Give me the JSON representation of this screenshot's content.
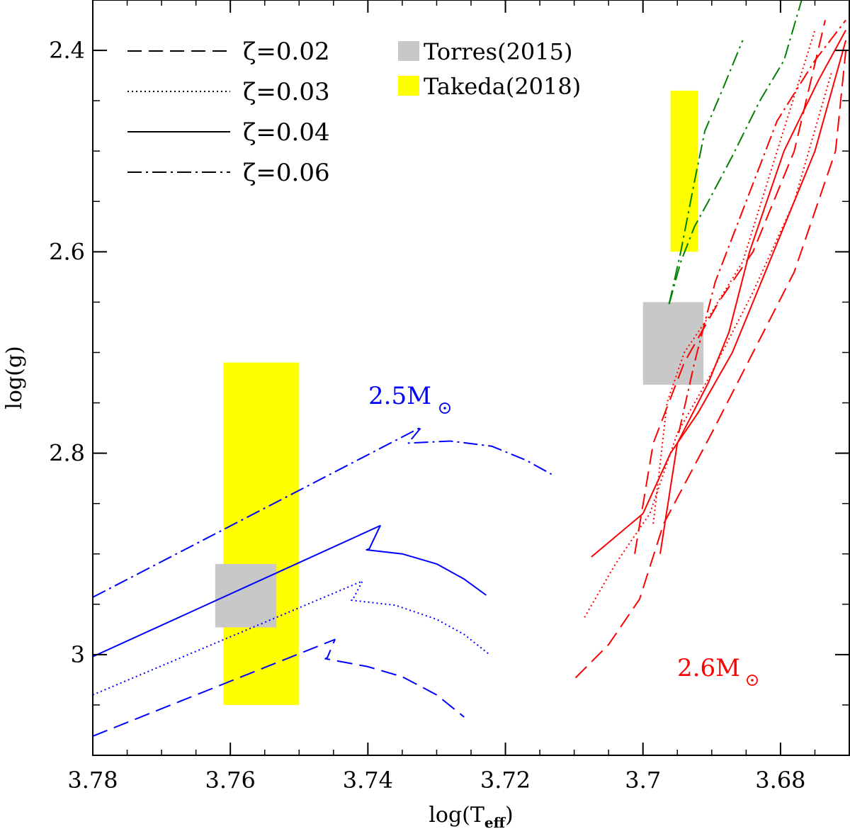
{
  "chart_data": {
    "type": "line",
    "title": "",
    "xlabel_main": "log(T",
    "xlabel_sub": "eff",
    "xlabel_close": ")",
    "ylabel": "log(g)",
    "xlim": [
      3.78,
      3.67
    ],
    "ylim": [
      3.1,
      2.35
    ],
    "x_ticks": [
      3.78,
      3.76,
      3.74,
      3.72,
      3.7,
      3.68
    ],
    "x_tick_labels": [
      "3.78",
      "3.76",
      "3.74",
      "3.72",
      "3.7",
      "3.68"
    ],
    "x_minor_step": 0.005,
    "y_ticks": [
      2.4,
      2.6,
      2.8,
      3.0
    ],
    "y_tick_labels": [
      "2.4",
      "2.6",
      "2.8",
      "3"
    ],
    "y_minor_step": 0.05,
    "legend_lines": [
      {
        "label": "ζ=0.02",
        "style": "dashed"
      },
      {
        "label": "ζ=0.03",
        "style": "dotted"
      },
      {
        "label": "ζ=0.04",
        "style": "solid"
      },
      {
        "label": "ζ=0.06",
        "style": "dashdot"
      }
    ],
    "legend_boxes": [
      {
        "label": "Torres(2015)",
        "color": "#c8c8c8"
      },
      {
        "label": "Takeda(2018)",
        "color": "#ffff00"
      }
    ],
    "mass_labels": [
      {
        "text": "2.5M",
        "color": "#0000ff",
        "x": 3.733,
        "y": 2.765
      },
      {
        "text": "2.6M",
        "color": "#ff0000",
        "x": 3.688,
        "y": 3.02
      }
    ],
    "boxes": [
      {
        "name": "takeda-box-left",
        "source": "Takeda(2018)",
        "color": "#ffff00",
        "x": [
          3.761,
          3.75
        ],
        "y": [
          2.71,
          3.05
        ]
      },
      {
        "name": "takeda-box-right",
        "source": "Takeda(2018)",
        "color": "#ffff00",
        "x": [
          3.696,
          3.692
        ],
        "y": [
          2.44,
          2.6
        ]
      },
      {
        "name": "torres-box-left",
        "source": "Torres(2015)",
        "color": "#c8c8c8",
        "x": [
          3.7622,
          3.7533
        ],
        "y": [
          2.91,
          2.973
        ]
      },
      {
        "name": "torres-box-right",
        "source": "Torres(2015)",
        "color": "#c8c8c8",
        "x": [
          3.7,
          3.6912
        ],
        "y": [
          2.65,
          2.732
        ]
      }
    ],
    "series": [
      {
        "name": "2.5M-zeta0.02",
        "color": "#0000ff",
        "style": "dashed",
        "x": [
          3.78,
          3.7448,
          3.7459,
          3.7462,
          3.74,
          3.735,
          3.73,
          3.726
        ],
        "y": [
          3.081,
          2.985,
          3.003,
          3.004,
          3.012,
          3.022,
          3.04,
          3.062
        ]
      },
      {
        "name": "2.5M-zeta0.03",
        "color": "#0000ff",
        "style": "dotted",
        "x": [
          3.78,
          3.7408,
          3.7421,
          3.7424,
          3.736,
          3.73,
          3.726,
          3.7225
        ],
        "y": [
          3.04,
          2.927,
          2.944,
          2.946,
          2.951,
          2.965,
          2.98,
          2.999
        ]
      },
      {
        "name": "2.5M-zeta0.04",
        "color": "#0000ff",
        "style": "solid",
        "x": [
          3.78,
          3.7382,
          3.7398,
          3.7402,
          3.735,
          3.73,
          3.726,
          3.7228
        ],
        "y": [
          3.002,
          2.872,
          2.895,
          2.896,
          2.9,
          2.91,
          2.925,
          2.941
        ]
      },
      {
        "name": "2.5M-zeta0.06",
        "color": "#0000ff",
        "style": "dashdot",
        "x": [
          3.78,
          3.7322,
          3.7339,
          3.7341,
          3.728,
          3.722,
          3.717,
          3.7133
        ],
        "y": [
          2.943,
          2.774,
          2.788,
          2.79,
          2.788,
          2.793,
          2.807,
          2.821
        ]
      },
      {
        "name": "2.6M-zeta0.02-rgb",
        "color": "#ff0000",
        "style": "dashed",
        "x": [
          3.7098,
          3.705,
          3.7005,
          3.697,
          3.69,
          3.684,
          3.678,
          3.672,
          3.6705
        ],
        "y": [
          3.023,
          2.99,
          2.945,
          2.87,
          2.78,
          2.7,
          2.62,
          2.5,
          2.4
        ]
      },
      {
        "name": "2.6M-zeta0.02-loop",
        "color": "#ff0000",
        "style": "dashed",
        "x": [
          3.7012,
          3.6985,
          3.694,
          3.689,
          3.684,
          3.678,
          3.6735
        ],
        "y": [
          2.9,
          2.79,
          2.71,
          2.65,
          2.6,
          2.5,
          2.37
        ]
      },
      {
        "name": "2.6M-zeta0.03-rgb",
        "color": "#ff0000",
        "style": "dotted",
        "x": [
          3.7085,
          3.704,
          3.699,
          3.695,
          3.69,
          3.684,
          3.678,
          3.6725
        ],
        "y": [
          2.963,
          2.91,
          2.86,
          2.78,
          2.72,
          2.64,
          2.55,
          2.42
        ]
      },
      {
        "name": "2.6M-zeta0.03-loop",
        "color": "#ff0000",
        "style": "dotted",
        "x": [
          3.6985,
          3.6965,
          3.694,
          3.69,
          3.6855,
          3.6805,
          3.675
        ],
        "y": [
          2.87,
          2.75,
          2.7,
          2.66,
          2.61,
          2.5,
          2.38
        ]
      },
      {
        "name": "2.6M-zeta0.04-rgb",
        "color": "#ff0000",
        "style": "solid",
        "x": [
          3.7075,
          3.7,
          3.696,
          3.692,
          3.687,
          3.681,
          3.675,
          3.6705
        ],
        "y": [
          2.903,
          2.86,
          2.8,
          2.76,
          2.7,
          2.6,
          2.5,
          2.39
        ]
      },
      {
        "name": "2.6M-zeta0.04-loop",
        "color": "#ff0000",
        "style": "solid",
        "x": [
          3.6975,
          3.695,
          3.6905,
          3.6875,
          3.6845,
          3.6795,
          3.6745,
          3.6705
        ],
        "y": [
          2.9,
          2.79,
          2.73,
          2.68,
          2.6,
          2.5,
          2.43,
          2.38
        ]
      },
      {
        "name": "2.6M-zeta0.06-rgb",
        "color": "#ff0000",
        "style": "dashdot",
        "x": [
          3.6948,
          3.6925,
          3.6895,
          3.685,
          3.6805,
          3.675,
          3.6705
        ],
        "y": [
          2.78,
          2.71,
          2.63,
          2.55,
          2.47,
          2.41,
          2.37
        ]
      },
      {
        "name": "2.6M-zeta0.06-green",
        "color": "#008000",
        "style": "dashdot",
        "x": [
          3.6962,
          3.6945,
          3.6925,
          3.691,
          3.6885,
          3.6855
        ],
        "y": [
          2.652,
          2.6,
          2.53,
          2.48,
          2.44,
          2.39
        ]
      },
      {
        "name": "2.6M-zeta0.06-green-branch",
        "color": "#008000",
        "style": "dashdot",
        "x": [
          3.6962,
          3.6945,
          3.6925,
          3.6905,
          3.687,
          3.683,
          3.6795,
          3.6765
        ],
        "y": [
          2.652,
          2.61,
          2.575,
          2.55,
          2.505,
          2.45,
          2.41,
          2.34
        ]
      }
    ]
  }
}
